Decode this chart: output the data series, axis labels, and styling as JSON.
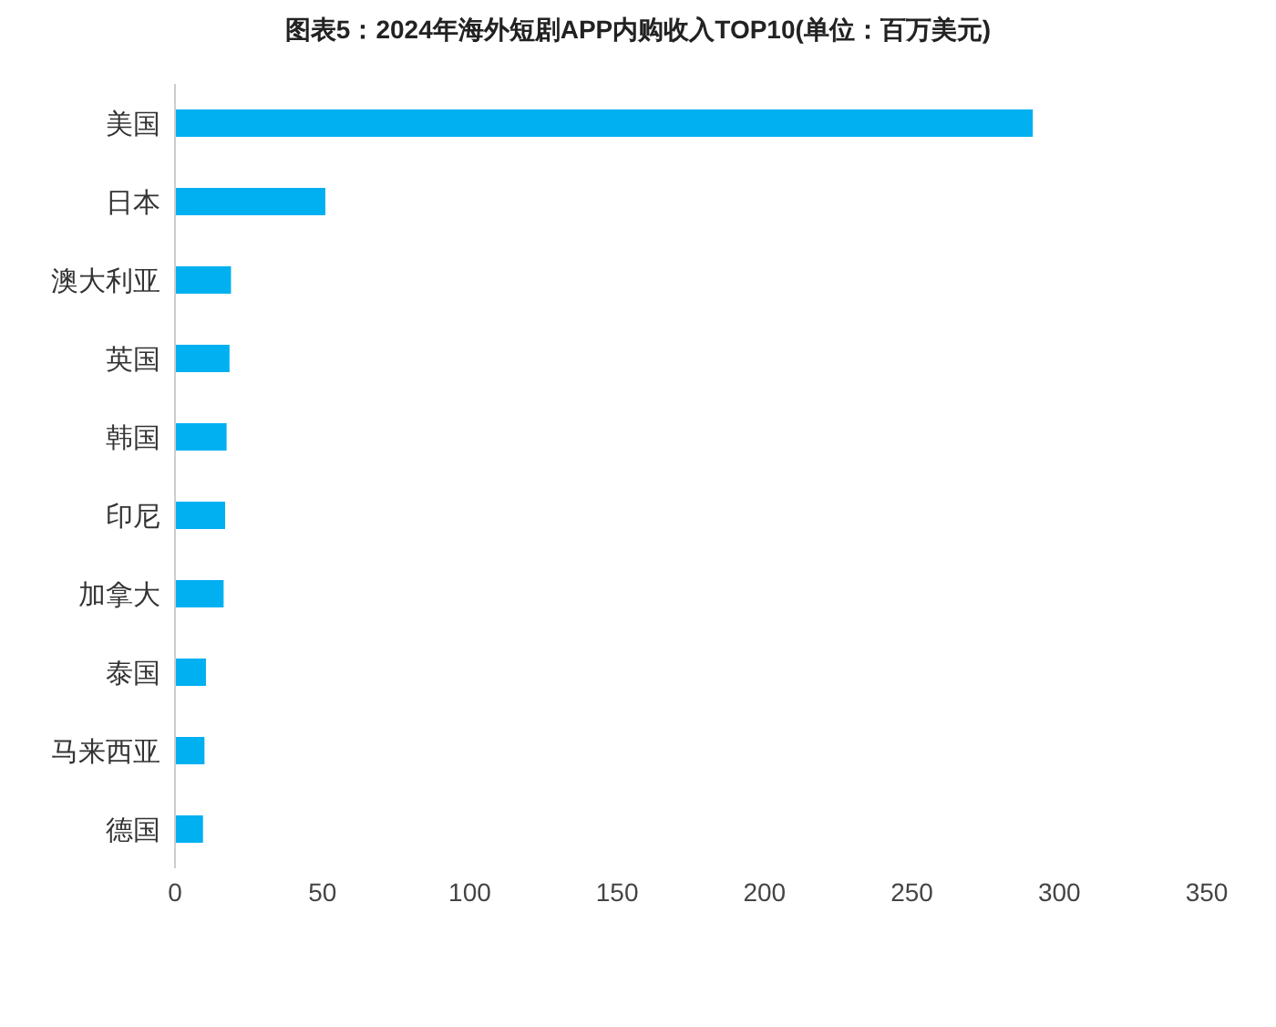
{
  "chart_data": {
    "type": "bar",
    "orientation": "horizontal",
    "title": "图表5：2024年海外短剧APP内购收入TOP10(单位：百万美元)",
    "categories": [
      "美国",
      "日本",
      "澳大利亚",
      "英国",
      "韩国",
      "印尼",
      "加拿大",
      "泰国",
      "马来西亚",
      "德国"
    ],
    "values": [
      291,
      51,
      19,
      18.5,
      17.5,
      17,
      16.5,
      10.5,
      10,
      9.5
    ],
    "color": "#00b0f0",
    "xlim": [
      0,
      350
    ],
    "xticks": [
      0,
      50,
      100,
      150,
      200,
      250,
      300,
      350
    ],
    "grid": false,
    "legend": false
  }
}
